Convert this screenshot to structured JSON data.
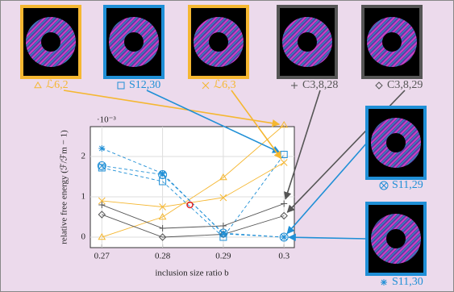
{
  "chart_data": {
    "type": "line",
    "x": [
      0.27,
      0.28,
      0.29,
      0.3
    ],
    "xlim": [
      0.2681,
      0.3017
    ],
    "ylim": [
      -0.26,
      2.74
    ],
    "xticks": [
      0.27,
      0.28,
      0.29,
      0.3
    ],
    "yticks": [
      0,
      1,
      2
    ],
    "y_multiplier": "·10⁻³",
    "xlabel": "inclusion size ratio b",
    "ylabel": "relative free energy (ℱ/ℱm − 1)",
    "series": [
      {
        "name": "ℒ6,2",
        "color": "#f5b731",
        "marker": "triangle",
        "dashed": false,
        "values": [
          0,
          0.5,
          1.48,
          2.78
        ]
      },
      {
        "name": "S12,30",
        "color": "#1f8fd6",
        "marker": "square",
        "dashed": true,
        "values": [
          1.72,
          1.38,
          0,
          2.05
        ]
      },
      {
        "name": "ℒ6,3",
        "color": "#f5b731",
        "marker": "x",
        "dashed": false,
        "values": [
          0.9,
          0.75,
          0.98,
          1.85
        ]
      },
      {
        "name": "C3,8,28",
        "color": "#555555",
        "marker": "plus",
        "dashed": false,
        "values": [
          0.8,
          0.22,
          0.28,
          0.83
        ]
      },
      {
        "name": "C3,8,29",
        "color": "#555555",
        "marker": "diamond",
        "dashed": false,
        "values": [
          0.56,
          0,
          0.07,
          0.53
        ]
      },
      {
        "name": "S11,29",
        "color": "#1f8fd6",
        "marker": "circlex",
        "dashed": true,
        "values": [
          1.77,
          1.55,
          0.1,
          0
        ]
      },
      {
        "name": "S11,30",
        "color": "#1f8fd6",
        "marker": "star",
        "dashed": true,
        "values": [
          2.2,
          1.58,
          0.08,
          0
        ]
      }
    ],
    "highlight": {
      "x": 0.2845,
      "y": 0.8,
      "color": "#e02020"
    }
  }
}
